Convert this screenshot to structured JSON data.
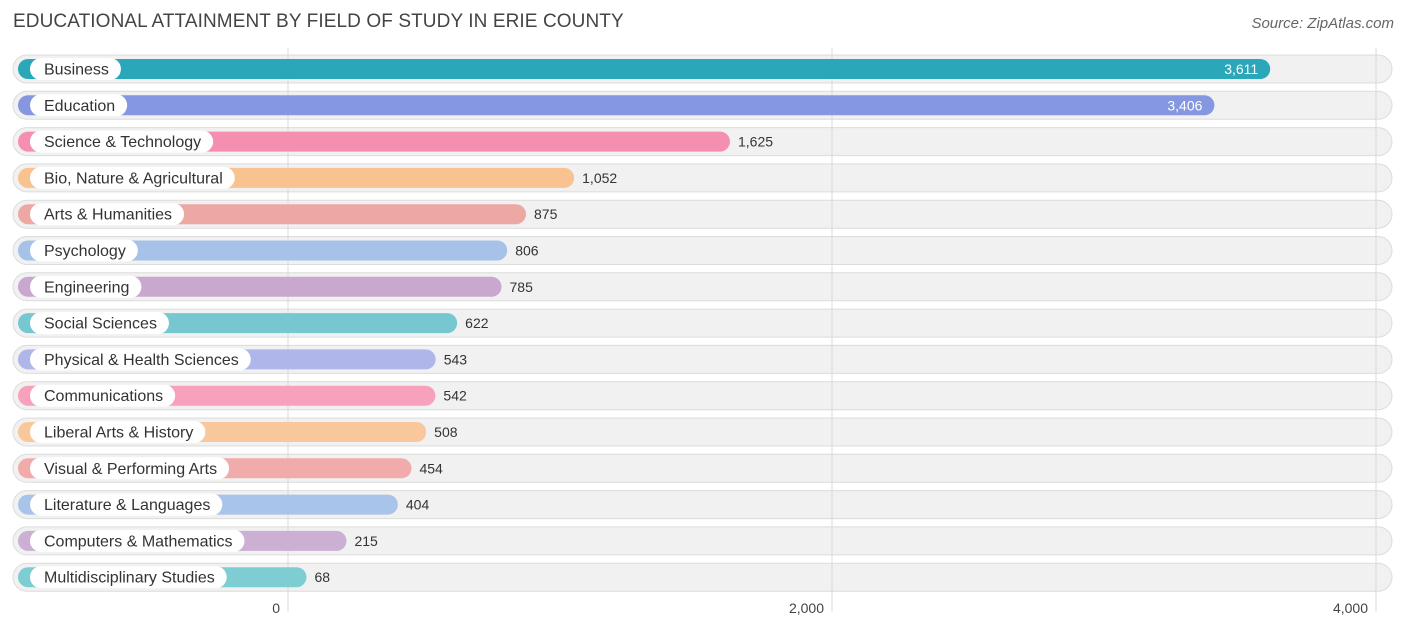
{
  "header": {
    "title": "EDUCATIONAL ATTAINMENT BY FIELD OF STUDY IN ERIE COUNTY",
    "source": "Source: ZipAtlas.com"
  },
  "chart_data": {
    "type": "bar",
    "orientation": "horizontal",
    "title": "EDUCATIONAL ATTAINMENT BY FIELD OF STUDY IN ERIE COUNTY",
    "xlim": [
      0,
      4000
    ],
    "xticks": [
      0,
      2000,
      4000
    ],
    "xtick_labels": [
      "0",
      "2,000",
      "4,000"
    ],
    "grid": true,
    "categories": [
      "Business",
      "Education",
      "Science & Technology",
      "Bio, Nature & Agricultural",
      "Arts & Humanities",
      "Psychology",
      "Engineering",
      "Social Sciences",
      "Physical & Health Sciences",
      "Communications",
      "Liberal Arts & History",
      "Visual & Performing Arts",
      "Literature & Languages",
      "Computers & Mathematics",
      "Multidisciplinary Studies"
    ],
    "values": [
      3611,
      3406,
      1625,
      1052,
      875,
      806,
      785,
      622,
      543,
      542,
      508,
      454,
      404,
      215,
      68
    ],
    "value_labels": [
      "3,611",
      "3,406",
      "1,625",
      "1,052",
      "875",
      "806",
      "785",
      "622",
      "543",
      "542",
      "508",
      "454",
      "404",
      "215",
      "68"
    ],
    "colors": [
      "#2aa7b8",
      "#8497e0",
      "#f58fb0",
      "#f9c291",
      "#eea8a4",
      "#a6c2e8",
      "#c9a8cf",
      "#76c7cf",
      "#afb6ea",
      "#f7a1bd",
      "#f9c79c",
      "#f0abaa",
      "#a8c4ea",
      "#ccb0d4",
      "#7dcdd3"
    ]
  }
}
